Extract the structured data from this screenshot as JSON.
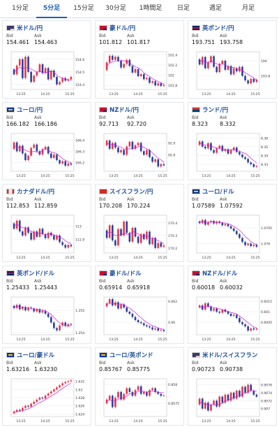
{
  "tabs": [
    "1分足",
    "5分足",
    "15分足",
    "30分足",
    "1時間足",
    "日足",
    "週足",
    "月足"
  ],
  "active_tab": 1,
  "labels": {
    "bid": "Bid",
    "ask": "Ask"
  },
  "colors": {
    "up": "#e8354a",
    "down": "#2a3f9d",
    "ma": "#d31ad6",
    "tab_active": "#1f5fb4",
    "title": "#1d4f9c"
  },
  "cards": [
    {
      "title": "米ドル/円",
      "flag_icon": "us-flag",
      "bid": "154.461",
      "ask": "154.463",
      "x_ticks": [
        "13:25",
        "14:25",
        "15:25"
      ],
      "y_ticks": [
        "154.6",
        "154.5",
        "154.4"
      ],
      "y_range": [
        154.36,
        154.66
      ],
      "series": [
        154.52,
        154.48,
        154.55,
        154.6,
        154.45,
        154.62,
        154.5,
        154.42,
        154.47,
        154.5,
        154.56,
        154.49,
        154.53,
        154.44,
        154.51,
        154.46,
        154.4,
        154.42,
        154.45,
        154.43,
        154.44,
        154.46
      ]
    },
    {
      "title": "豪ドル/円",
      "flag_icon": "au-flag",
      "bid": "101.812",
      "ask": "101.817",
      "x_ticks": [
        "13:25",
        "14:25",
        "15:25"
      ],
      "y_ticks": [
        "102.4",
        "102.2",
        "102",
        "101.8"
      ],
      "y_range": [
        101.72,
        102.46
      ],
      "series": [
        102.1,
        102.25,
        102.38,
        102.3,
        102.36,
        102.28,
        102.15,
        102.22,
        102.3,
        102.18,
        102.05,
        102.12,
        101.98,
        102.02,
        101.92,
        101.95,
        101.85,
        101.88,
        101.8,
        101.84,
        101.79,
        101.81
      ]
    },
    {
      "title": "英ポンド/円",
      "flag_icon": "gb-flag",
      "bid": "193.751",
      "ask": "193.758",
      "x_ticks": [
        "13:25",
        "14:25",
        "15:25"
      ],
      "y_ticks": [
        "194",
        "193.8"
      ],
      "y_range": [
        193.62,
        194.12
      ],
      "series": [
        194.02,
        193.95,
        194.05,
        193.9,
        193.98,
        194.06,
        193.92,
        193.85,
        193.96,
        194.0,
        193.88,
        193.93,
        193.82,
        193.9,
        193.86,
        193.92,
        193.8,
        193.74,
        193.7,
        193.76,
        193.72,
        193.75
      ]
    },
    {
      "title": "ユーロ/円",
      "flag_icon": "eu-flag",
      "bid": "166.182",
      "ask": "166.186",
      "x_ticks": [
        "13:25",
        "14:25",
        "15:25"
      ],
      "y_ticks": [
        "166.4",
        "166.3",
        "166.2"
      ],
      "y_range": [
        166.12,
        166.46
      ],
      "series": [
        166.32,
        166.38,
        166.3,
        166.35,
        166.28,
        166.22,
        166.26,
        166.33,
        166.36,
        166.3,
        166.27,
        166.32,
        166.34,
        166.28,
        166.24,
        166.27,
        166.22,
        166.19,
        166.21,
        166.17,
        166.19,
        166.18
      ]
    },
    {
      "title": "NZドル/円",
      "flag_icon": "nz-flag",
      "bid": "92.713",
      "ask": "92.720",
      "x_ticks": [
        "13:25",
        "14:25",
        "15:25"
      ],
      "y_ticks": [
        "92.9",
        "92.8"
      ],
      "y_range": [
        92.66,
        92.98
      ],
      "series": [
        92.88,
        92.92,
        92.85,
        92.9,
        92.86,
        92.82,
        92.84,
        92.8,
        92.87,
        92.91,
        92.85,
        92.88,
        92.9,
        92.83,
        92.8,
        92.84,
        92.78,
        92.74,
        92.76,
        92.7,
        92.72,
        92.71
      ]
    },
    {
      "title": "ランド/円",
      "flag_icon": "za-flag",
      "bid": "8.323",
      "ask": "8.332",
      "x_ticks": [
        "13:25",
        "14:25",
        "15:25"
      ],
      "y_ticks": [
        "8.36",
        "8.35",
        "8.34",
        "8.33"
      ],
      "y_range": [
        8.322,
        8.365
      ],
      "series": [
        8.352,
        8.356,
        8.35,
        8.348,
        8.354,
        8.346,
        8.343,
        8.348,
        8.351,
        8.345,
        8.347,
        8.342,
        8.346,
        8.349,
        8.344,
        8.341,
        8.338,
        8.336,
        8.332,
        8.33,
        8.327,
        8.328
      ]
    },
    {
      "title": "カナダドル/円",
      "flag_icon": "ca-flag",
      "bid": "112.853",
      "ask": "112.859",
      "x_ticks": [
        "13:25",
        "14:25",
        "15:25"
      ],
      "y_ticks": [
        "113",
        "112.9"
      ],
      "y_range": [
        112.8,
        113.08
      ],
      "series": [
        113.02,
        112.98,
        113.04,
        112.96,
        112.93,
        112.99,
        112.95,
        112.9,
        112.96,
        112.92,
        112.98,
        112.94,
        112.91,
        112.95,
        112.93,
        112.9,
        112.93,
        112.88,
        112.86,
        112.84,
        112.86,
        112.85
      ]
    },
    {
      "title": "スイスフラン/円",
      "flag_icon": "ch-flag",
      "bid": "170.208",
      "ask": "170.224",
      "x_ticks": [
        "13:25",
        "14:25",
        "15:25"
      ],
      "y_ticks": [
        "170.4",
        "170.3",
        "170.2"
      ],
      "y_range": [
        170.16,
        170.46
      ],
      "series": [
        170.34,
        170.28,
        170.38,
        170.26,
        170.22,
        170.35,
        170.3,
        170.41,
        170.32,
        170.25,
        170.36,
        170.29,
        170.24,
        170.31,
        170.27,
        170.33,
        170.23,
        170.28,
        170.2,
        170.24,
        170.21,
        170.22
      ]
    },
    {
      "title": "ユーロ/ドル",
      "flag_icon": "eu-flag",
      "bid": "1.07589",
      "ask": "1.07592",
      "x_ticks": [
        "13:25",
        "14:25",
        "15:25"
      ],
      "y_ticks": [
        "1.0765",
        "1.076"
      ],
      "y_range": [
        1.0757,
        1.0769
      ],
      "series": [
        1.0767,
        1.07665,
        1.07675,
        1.0766,
        1.07668,
        1.07672,
        1.07664,
        1.0767,
        1.07666,
        1.07658,
        1.07662,
        1.07655,
        1.07648,
        1.0764,
        1.0763,
        1.07618,
        1.07605,
        1.07595,
        1.076,
        1.07592,
        1.07596,
        1.0759
      ]
    },
    {
      "title": "英ポンド/ドル",
      "flag_icon": "gb-flag",
      "bid": "1.25433",
      "ask": "1.25443",
      "x_ticks": [
        "13:25",
        "14:25",
        "15:25"
      ],
      "y_ticks": [
        "1.255",
        "1.254"
      ],
      "y_range": [
        1.2539,
        1.2556
      ],
      "series": [
        1.2552,
        1.2551,
        1.25525,
        1.25505,
        1.25515,
        1.255,
        1.25512,
        1.25508,
        1.25495,
        1.25505,
        1.2549,
        1.25498,
        1.25485,
        1.2547,
        1.25445,
        1.2542,
        1.2541,
        1.25432,
        1.25445,
        1.2543,
        1.25438,
        1.25435
      ]
    },
    {
      "title": "豪ドル/ドル",
      "flag_icon": "au-flag",
      "bid": "0.65914",
      "ask": "0.65918",
      "x_ticks": [
        "13:25",
        "14:25",
        "15:25"
      ],
      "y_ticks": [
        "0.662",
        "0.66"
      ],
      "y_range": [
        0.6588,
        0.6624
      ],
      "series": [
        0.6615,
        0.6618,
        0.6622,
        0.6616,
        0.6619,
        0.6613,
        0.6617,
        0.6614,
        0.661,
        0.6608,
        0.6605,
        0.6602,
        0.66,
        0.6599,
        0.6597,
        0.6596,
        0.6595,
        0.6593,
        0.6594,
        0.6592,
        0.65925,
        0.65915
      ]
    },
    {
      "title": "NZドル/ドル",
      "flag_icon": "nz-flag",
      "bid": "0.60018",
      "ask": "0.60032",
      "x_ticks": [
        "13:25",
        "14:25",
        "15:25"
      ],
      "y_ticks": [
        "0.6015",
        "0.601",
        "0.6005"
      ],
      "y_range": [
        0.5999,
        0.6017
      ],
      "series": [
        0.6012,
        0.6013,
        0.6011,
        0.6014,
        0.60125,
        0.60105,
        0.60115,
        0.601,
        0.60095,
        0.6011,
        0.601,
        0.6009,
        0.6008,
        0.60085,
        0.6007,
        0.6005,
        0.6004,
        0.6003,
        0.6001,
        0.6002,
        0.60015,
        0.6002
      ]
    },
    {
      "title": "ユーロ/豪ドル",
      "flag_icon": "eu-flag",
      "bid": "1.63216",
      "ask": "1.63230",
      "x_ticks": [
        "13:25",
        "14:25",
        "15:25"
      ],
      "y_ticks": [
        "1.632",
        "1.63",
        "1.628",
        "1.626",
        "1.624"
      ],
      "y_range": [
        1.6234,
        1.6326
      ],
      "series": [
        1.6242,
        1.6246,
        1.625,
        1.6248,
        1.6255,
        1.626,
        1.6258,
        1.6265,
        1.627,
        1.6275,
        1.628,
        1.6278,
        1.6285,
        1.629,
        1.6295,
        1.63,
        1.6305,
        1.631,
        1.6315,
        1.6318,
        1.632,
        1.6322
      ]
    },
    {
      "title": "ユーロ/英ポンド",
      "flag_icon": "eu-flag",
      "bid": "0.85767",
      "ask": "0.85775",
      "x_ticks": [
        "13:25",
        "14:25",
        "15:25"
      ],
      "y_ticks": [
        "0.858",
        "0.8575"
      ],
      "y_range": [
        0.85715,
        0.85815
      ],
      "series": [
        0.8575,
        0.8576,
        0.8577,
        0.8574,
        0.85765,
        0.8578,
        0.8576,
        0.85775,
        0.8579,
        0.8578,
        0.8577,
        0.85785,
        0.85795,
        0.85775,
        0.8578,
        0.8577,
        0.85785,
        0.8579,
        0.8578,
        0.85775,
        0.8577,
        0.85771
      ]
    },
    {
      "title": "米ドル/スイスフラン",
      "flag_icon": "us-flag",
      "bid": "0.90723",
      "ask": "0.90738",
      "x_ticks": [
        "13:25",
        "14:25",
        "15:25"
      ],
      "y_ticks": [
        "0.9076",
        "0.9074",
        "0.9072",
        "0.907"
      ],
      "y_range": [
        0.9068,
        0.90775
      ],
      "series": [
        0.9071,
        0.90725,
        0.907,
        0.90715,
        0.90695,
        0.9071,
        0.9072,
        0.90705,
        0.9073,
        0.90715,
        0.90735,
        0.9072,
        0.9074,
        0.90725,
        0.90745,
        0.9073,
        0.90755,
        0.9074,
        0.9076,
        0.90745,
        0.90735,
        0.9073
      ]
    }
  ]
}
